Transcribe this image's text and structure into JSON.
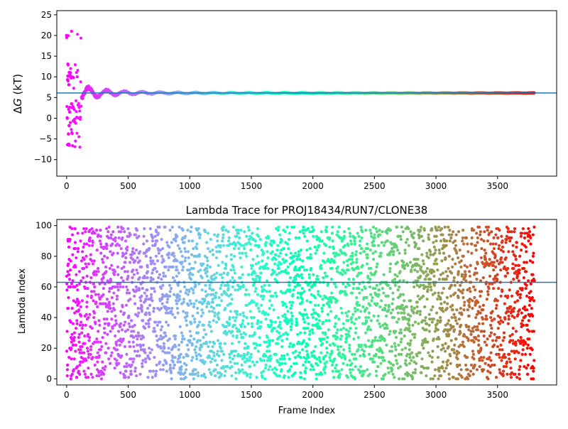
{
  "chart_data": [
    {
      "type": "scatter",
      "title": "",
      "xlabel": "",
      "ylabel_prefix": "Δ",
      "ylabel_var": "G",
      "ylabel_suffix": " (kT)",
      "xlim": [
        -80,
        3980
      ],
      "ylim": [
        -14,
        26
      ],
      "xticks": [
        0,
        500,
        1000,
        1500,
        2000,
        2500,
        3000,
        3500
      ],
      "yticks": [
        -10,
        -5,
        0,
        5,
        10,
        15,
        20,
        25
      ],
      "hline": 6.1,
      "hline_color": "#1f77b4",
      "grid": false,
      "colormap": "rainbow",
      "n_frames": 3800,
      "series_description": "running Delta G estimate per frame, colored by frame index; scattered early (-6.4 to 20) then converging near 6.1",
      "sample_points": [
        [
          0,
          20.0
        ],
        [
          5,
          0.0
        ],
        [
          8,
          -6.4
        ],
        [
          10,
          10.2
        ],
        [
          12,
          12.9
        ],
        [
          15,
          -3.8
        ],
        [
          18,
          8.1
        ],
        [
          20,
          -1.8
        ],
        [
          25,
          1.5
        ],
        [
          30,
          11.0
        ],
        [
          40,
          3.5
        ],
        [
          50,
          9.9
        ],
        [
          70,
          2.9
        ],
        [
          90,
          9.2
        ],
        [
          120,
          4.8
        ],
        [
          200,
          5.1
        ],
        [
          300,
          6.6
        ],
        [
          500,
          5.6
        ],
        [
          800,
          6.4
        ],
        [
          900,
          5.9
        ],
        [
          1500,
          6.1
        ],
        [
          2500,
          6.0
        ],
        [
          3800,
          6.1
        ]
      ]
    },
    {
      "type": "scatter",
      "title": "Lambda Trace for PROJ18434/RUN7/CLONE38",
      "xlabel": "Frame Index",
      "ylabel": "Lambda Index",
      "xlim": [
        -80,
        3980
      ],
      "ylim": [
        -4,
        104
      ],
      "xticks": [
        0,
        500,
        1000,
        1500,
        2000,
        2500,
        3000,
        3500
      ],
      "yticks": [
        0,
        20,
        40,
        60,
        80,
        100
      ],
      "hline": 63,
      "hline_color": "#1f77b4",
      "grid": false,
      "colormap": "rainbow",
      "n_frames": 3800,
      "lambda_range": [
        0,
        99
      ],
      "series_description": "lambda index sampled per frame, roughly uniform over 0-99, colored by frame index"
    }
  ]
}
